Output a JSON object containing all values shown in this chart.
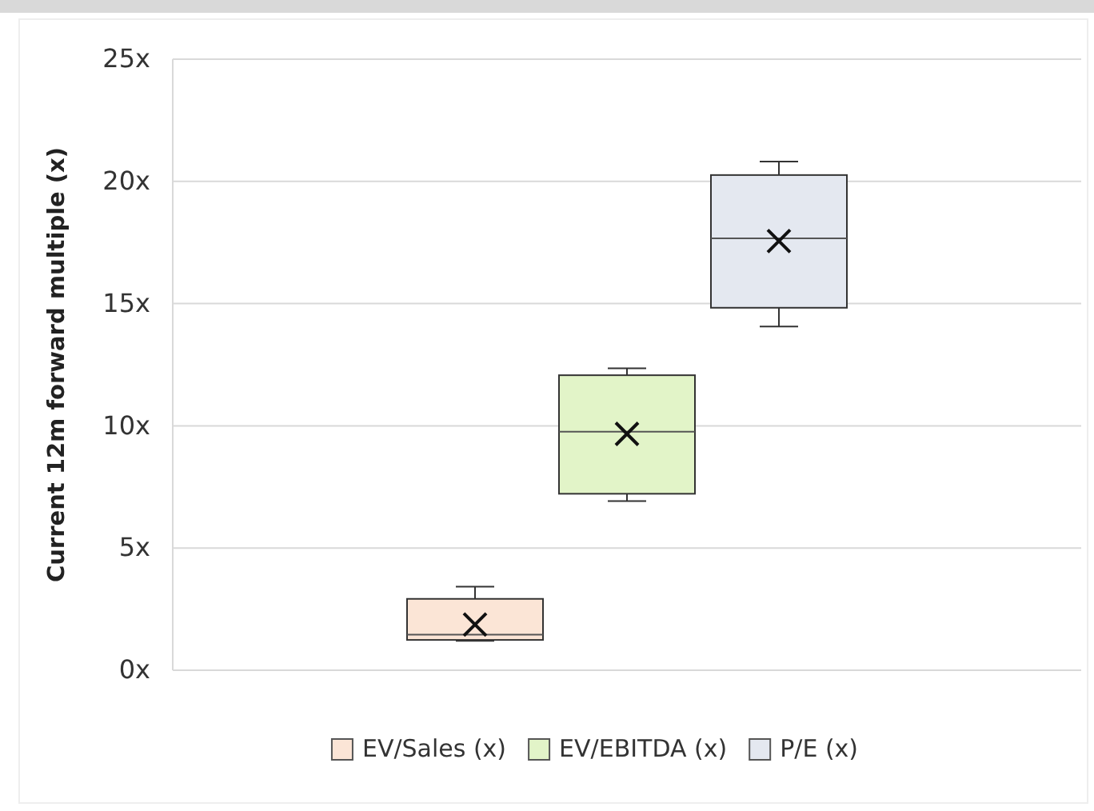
{
  "chart_data": {
    "type": "box",
    "ylabel": "Current 12m forward multiple (x)",
    "categories": [
      null
    ],
    "ylim": [
      0,
      25
    ],
    "yticks": [
      {
        "value": 0,
        "label": "0x"
      },
      {
        "value": 5,
        "label": "5x"
      },
      {
        "value": 10,
        "label": "10x"
      },
      {
        "value": 15,
        "label": "15x"
      },
      {
        "value": 20,
        "label": "20x"
      },
      {
        "value": 25,
        "label": "25x"
      }
    ],
    "grid": "y",
    "legend": "bottom",
    "marker": "cross",
    "series": [
      {
        "name": "EV/Sales (x)",
        "color": "#fbe5d6",
        "boxes": [
          {
            "low": 1.2,
            "q1": 1.24,
            "median": 1.46,
            "q3": 2.92,
            "high": 3.42,
            "mean": 1.87
          }
        ]
      },
      {
        "name": "EV/EBITDA (x)",
        "color": "#e2f4c8",
        "boxes": [
          {
            "low": 6.92,
            "q1": 7.22,
            "median": 9.76,
            "q3": 12.07,
            "high": 12.35,
            "mean": 9.67
          }
        ]
      },
      {
        "name": "P/E (x)",
        "color": "#e4e8f0",
        "boxes": [
          {
            "low": 14.06,
            "q1": 14.83,
            "median": 17.67,
            "q3": 20.26,
            "high": 20.81,
            "mean": 17.56
          }
        ]
      }
    ]
  }
}
